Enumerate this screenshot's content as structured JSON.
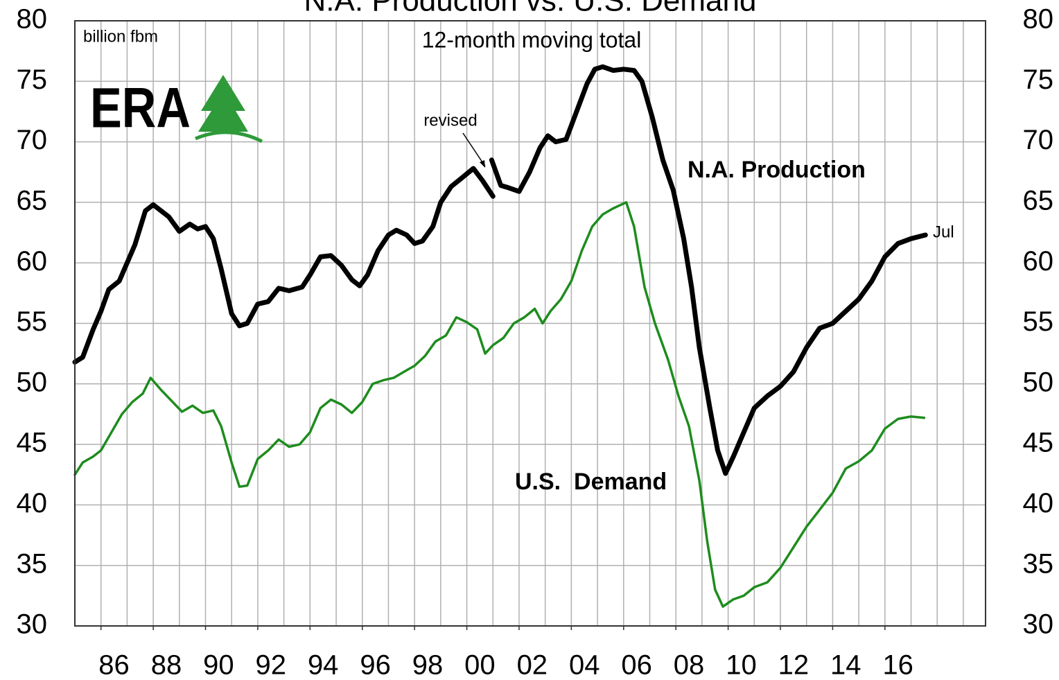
{
  "chart_data": {
    "type": "line",
    "title": "N.A. Production vs. U.S. Demand",
    "subtitle": "12-month moving total",
    "y_label": "billion fbm",
    "logo": "ERA",
    "annotations": [
      "revised",
      "N.A. Production",
      "U.S.  Demand",
      "Jul"
    ],
    "xlim": [
      1985,
      2019.85
    ],
    "xticks": [
      {
        "value": 1986,
        "label": "86"
      },
      {
        "value": 1988,
        "label": "88"
      },
      {
        "value": 1990,
        "label": "90"
      },
      {
        "value": 1992,
        "label": "92"
      },
      {
        "value": 1994,
        "label": "94"
      },
      {
        "value": 1996,
        "label": "96"
      },
      {
        "value": 1998,
        "label": "98"
      },
      {
        "value": 2000,
        "label": "00"
      },
      {
        "value": 2002,
        "label": "02"
      },
      {
        "value": 2004,
        "label": "04"
      },
      {
        "value": 2006,
        "label": "06"
      },
      {
        "value": 2008,
        "label": "08"
      },
      {
        "value": 2010,
        "label": "10"
      },
      {
        "value": 2012,
        "label": "12"
      },
      {
        "value": 2014,
        "label": "14"
      },
      {
        "value": 2016,
        "label": "16"
      }
    ],
    "xgrid": [
      1986,
      1987,
      1988,
      1989,
      1990,
      1991,
      1992,
      1993,
      1994,
      1995,
      1996,
      1997,
      1998,
      1999,
      2000,
      2001,
      2002,
      2003,
      2004,
      2005,
      2006,
      2007,
      2008,
      2009,
      2010,
      2011,
      2012,
      2013,
      2014,
      2015,
      2016,
      2017,
      2018,
      2019
    ],
    "ylim": [
      30,
      80
    ],
    "yticks": [
      30,
      35,
      40,
      45,
      50,
      55,
      60,
      65,
      70,
      75,
      80
    ],
    "y2lim": [
      30,
      80
    ],
    "y2ticks": [
      30,
      35,
      40,
      45,
      50,
      55,
      60,
      65,
      70,
      75,
      80
    ],
    "grid": true,
    "series": [
      {
        "name": "N.A. Production",
        "color": "#000000",
        "x": [
          1985.0,
          1985.3,
          1985.7,
          1986.0,
          1986.3,
          1986.7,
          1987.0,
          1987.3,
          1987.7,
          1988.0,
          1988.3,
          1988.6,
          1989.0,
          1989.4,
          1989.7,
          1990.0,
          1990.3,
          1990.6,
          1991.0,
          1991.3,
          1991.6,
          1992.0,
          1992.4,
          1992.8,
          1993.2,
          1993.7,
          1994.0,
          1994.4,
          1994.8,
          1995.2,
          1995.6,
          1995.9,
          1996.2,
          1996.6,
          1997.0,
          1997.3,
          1997.7,
          1998.0,
          1998.3,
          1998.7,
          1999.0,
          1999.4,
          1999.8,
          2000.25,
          2000.6,
          2001.0,
          null,
          2000.95,
          2001.3,
          2001.6,
          2002.0,
          2002.4,
          2002.8,
          2003.1,
          2003.4,
          2003.8,
          2004.2,
          2004.6,
          2004.9,
          2005.2,
          2005.6,
          2006.0,
          2006.4,
          2006.7,
          2007.1,
          2007.5,
          2007.9,
          2008.3,
          2008.6,
          2008.9,
          2009.3,
          2009.6,
          2009.9,
          2010.2,
          2010.6,
          2011.0,
          2011.5,
          2012.0,
          2012.5,
          2013.0,
          2013.5,
          2014.0,
          2014.5,
          2015.0,
          2015.5,
          2016.0,
          2016.5,
          2017.0,
          2017.55
        ],
        "values": [
          51.8,
          52.2,
          54.5,
          56,
          57.8,
          58.5,
          60,
          61.5,
          64.3,
          64.8,
          64.3,
          63.8,
          62.6,
          63.2,
          62.8,
          63,
          62,
          59.5,
          55.8,
          54.8,
          55,
          56.6,
          56.8,
          57.9,
          57.7,
          58,
          59,
          60.5,
          60.6,
          59.8,
          58.6,
          58.1,
          59,
          61,
          62.3,
          62.7,
          62.3,
          61.6,
          61.8,
          63,
          65,
          66.3,
          67,
          67.8,
          66.8,
          65.5,
          null,
          68.5,
          66.4,
          66.2,
          65.9,
          67.5,
          69.5,
          70.5,
          70,
          70.2,
          72.5,
          74.8,
          76,
          76.2,
          75.9,
          76,
          75.9,
          75,
          72,
          68.5,
          66,
          62,
          58,
          53,
          48,
          44.5,
          42.6,
          44,
          46,
          48,
          49,
          49.8,
          51,
          53,
          54.6,
          55,
          56,
          57,
          58.5,
          60.5,
          61.6,
          62,
          62.3
        ]
      },
      {
        "name": "U.S.  Demand",
        "color": "#1e8c1e",
        "x": [
          1985.0,
          1985.3,
          1985.7,
          1986.0,
          1986.4,
          1986.8,
          1987.2,
          1987.6,
          1987.9,
          1988.3,
          1988.7,
          1989.1,
          1989.5,
          1989.9,
          1990.3,
          1990.6,
          1991.0,
          1991.3,
          1991.6,
          1992.0,
          1992.4,
          1992.8,
          1993.2,
          1993.6,
          1994.0,
          1994.4,
          1994.8,
          1995.2,
          1995.6,
          1996.0,
          1996.4,
          1996.8,
          1997.2,
          1997.6,
          1998.0,
          1998.4,
          1998.8,
          1999.2,
          1999.6,
          2000.0,
          2000.4,
          2000.7,
          2001.0,
          2001.4,
          2001.8,
          2002.2,
          2002.6,
          2002.9,
          2003.2,
          2003.6,
          2004.0,
          2004.4,
          2004.8,
          2005.2,
          2005.6,
          2006.1,
          2006.4,
          2006.8,
          2007.2,
          2007.7,
          2008.1,
          2008.5,
          2008.9,
          2009.2,
          2009.5,
          2009.8,
          2010.2,
          2010.6,
          2011.0,
          2011.5,
          2012.0,
          2012.5,
          2013.0,
          2013.5,
          2014.0,
          2014.5,
          2015.0,
          2015.5,
          2016.0,
          2016.5,
          2017.0,
          2017.5
        ],
        "values": [
          42.5,
          43.5,
          44,
          44.5,
          46,
          47.5,
          48.5,
          49.2,
          50.5,
          49.5,
          48.6,
          47.7,
          48.2,
          47.6,
          47.8,
          46.5,
          43.5,
          41.5,
          41.6,
          43.8,
          44.5,
          45.4,
          44.8,
          45,
          46,
          48,
          48.7,
          48.3,
          47.6,
          48.5,
          50,
          50.3,
          50.5,
          51,
          51.5,
          52.3,
          53.5,
          54,
          55.5,
          55.1,
          54.5,
          52.5,
          53.2,
          53.8,
          55,
          55.5,
          56.2,
          55,
          56,
          57,
          58.5,
          61,
          63,
          64,
          64.5,
          65,
          63,
          58,
          55,
          52,
          49,
          46.5,
          42,
          37,
          33,
          31.6,
          32.2,
          32.5,
          33.2,
          33.6,
          34.8,
          36.5,
          38.2,
          39.6,
          41,
          43,
          43.6,
          44.5,
          46.3,
          47.1,
          47.3,
          47.2
        ]
      }
    ]
  }
}
